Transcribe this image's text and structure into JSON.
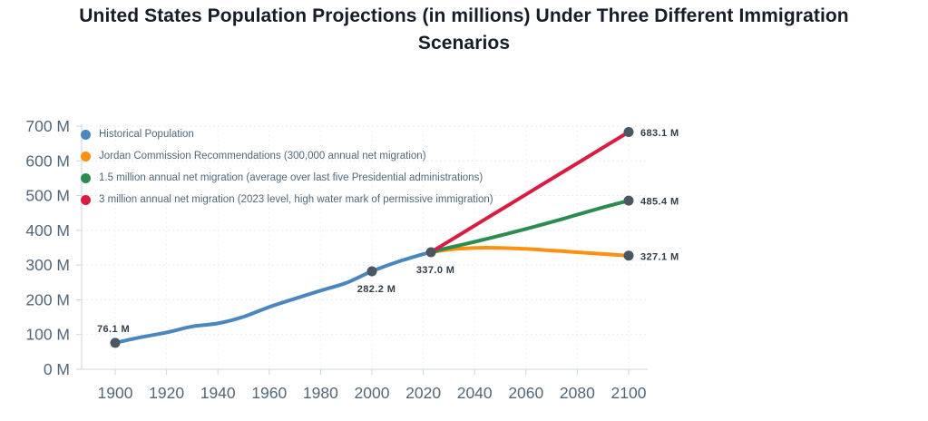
{
  "title": "United States Population Projections (in millions) Under Three Different Immigration Scenarios",
  "chart_data": {
    "type": "line",
    "title": "United States Population Projections (in millions) Under Three Different Immigration Scenarios",
    "xlabel": "",
    "ylabel": "",
    "xlim": [
      1900,
      2100
    ],
    "ylim": [
      0,
      700
    ],
    "grid": true,
    "legend_position": "top-left",
    "x_tick_values": [
      1900,
      1920,
      1940,
      1960,
      1980,
      2000,
      2020,
      2040,
      2060,
      2080,
      2100
    ],
    "x_tick_labels": [
      "1900",
      "1920",
      "1940",
      "1960",
      "1980",
      "2000",
      "2020",
      "2040",
      "2060",
      "2080",
      "2100"
    ],
    "y_tick_values": [
      0,
      100,
      200,
      300,
      400,
      500,
      600,
      700
    ],
    "y_tick_labels": [
      "0 M",
      "100 M",
      "200 M",
      "300 M",
      "400 M",
      "500 M",
      "600 M",
      "700 M"
    ],
    "marker_color": "#4a5662",
    "series": [
      {
        "key": "historical",
        "name": "Historical Population",
        "color": "#4a87c0",
        "x": [
          1900,
          1910,
          1920,
          1930,
          1940,
          1950,
          1960,
          1970,
          1980,
          1990,
          2000,
          2010,
          2020,
          2023
        ],
        "values": [
          76.1,
          92.2,
          106.0,
          123.2,
          132.2,
          151.3,
          179.3,
          203.2,
          226.5,
          248.7,
          282.2,
          309.3,
          331.4,
          337.0
        ]
      },
      {
        "key": "jordan-commission",
        "name": "Jordan Commission Recommendations (300,000 annual net migration)",
        "color": "#ff9112",
        "x": [
          2023,
          2030,
          2040,
          2050,
          2060,
          2070,
          2080,
          2090,
          2100
        ],
        "values": [
          337.0,
          344.5,
          349.5,
          349.5,
          346.5,
          342.0,
          337.0,
          332.0,
          327.1
        ]
      },
      {
        "key": "net-migration-1-5m",
        "name": "1.5 million annual net migration (average over last five Presidential administrations)",
        "color": "#2b8c52",
        "x": [
          2023,
          2030,
          2040,
          2050,
          2060,
          2070,
          2080,
          2090,
          2100
        ],
        "values": [
          337.0,
          350.0,
          367.0,
          385.0,
          404.0,
          424.0,
          445.0,
          466.0,
          485.4
        ]
      },
      {
        "key": "net-migration-3m",
        "name": "3 million annual net migration (2023 level, high water mark of permissive immigration)",
        "color": "#da1b43",
        "x": [
          2023,
          2030,
          2040,
          2050,
          2060,
          2070,
          2080,
          2090,
          2100
        ],
        "values": [
          337.0,
          368.5,
          413.4,
          458.4,
          503.3,
          548.3,
          593.2,
          638.2,
          683.1
        ]
      }
    ],
    "annotations": [
      {
        "label": "76.1 M",
        "x": 1900,
        "value": 76.1,
        "placement": "above"
      },
      {
        "label": "282.2 M",
        "x": 2000,
        "value": 282.2,
        "placement": "below"
      },
      {
        "label": "337.0 M",
        "x": 2023,
        "value": 337.0,
        "placement": "below"
      },
      {
        "label": "683.1 M",
        "x": 2100,
        "value": 683.1,
        "placement": "right"
      },
      {
        "label": "485.4 M",
        "x": 2100,
        "value": 485.4,
        "placement": "right"
      },
      {
        "label": "327.1 M",
        "x": 2100,
        "value": 327.1,
        "placement": "right"
      }
    ]
  }
}
